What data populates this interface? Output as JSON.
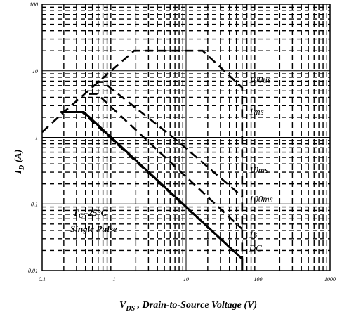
{
  "chart_data": {
    "type": "line",
    "title": "",
    "xlabel": "V_DS , Drain-to-Source Voltage (V)",
    "xlabel_main": "V",
    "xlabel_sub": "DS",
    "xlabel_rest": " , Drain-to-Source Voltage (V)",
    "ylabel": "I_D (A)",
    "ylabel_main": "I",
    "ylabel_sub": "D",
    "ylabel_rest": " (A)",
    "x_scale": "log",
    "y_scale": "log",
    "xlim": [
      0.1,
      1000
    ],
    "ylim": [
      0.01,
      100
    ],
    "x_ticks": [
      0.1,
      1,
      10,
      100,
      1000
    ],
    "x_tick_labels": [
      "0.1",
      "1",
      "10",
      "100",
      "1000"
    ],
    "y_ticks": [
      0.01,
      0.1,
      1,
      10,
      100
    ],
    "y_tick_labels": [
      "0.01",
      "0.1",
      "1",
      "10",
      "100"
    ],
    "grid": true,
    "annotations": [
      "T",
      "=25°C",
      "Single  Pulse"
    ],
    "series": [
      {
        "name": "100us",
        "style": "dashed",
        "x": [
          0.1,
          0.2,
          1.9,
          17,
          60,
          60
        ],
        "y": [
          1.2,
          2.4,
          20,
          20,
          5.6,
          0.01
        ]
      },
      {
        "name": "1ms",
        "style": "dashed",
        "x": [
          0.55,
          0.7,
          7,
          60
        ],
        "y": [
          6.8,
          6.8,
          0.95,
          0.13
        ]
      },
      {
        "name": "10ms",
        "style": "dashed",
        "x": [
          0.45,
          0.58,
          60
        ],
        "y": [
          4.5,
          4.5,
          0.042
        ]
      },
      {
        "name": "100ms",
        "style": "dashed",
        "x": [
          0.2,
          0.38,
          60
        ],
        "y": [
          2.4,
          2.4,
          0.015
        ]
      },
      {
        "name": "1s",
        "style": "dashed",
        "x": [
          0.2,
          0.36,
          60
        ],
        "y": [
          2.4,
          2.4,
          0.015
        ]
      },
      {
        "name": "DC",
        "style": "solid",
        "x": [
          0.18,
          0.38,
          60,
          60
        ],
        "y": [
          2.4,
          2.4,
          0.015,
          0.01
        ]
      }
    ]
  }
}
